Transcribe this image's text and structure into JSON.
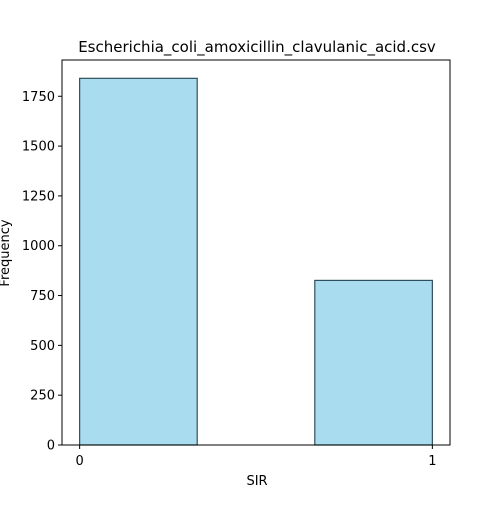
{
  "chart_data": {
    "type": "bar",
    "title": "Escherichia_coli_amoxicillin_clavulanic_acid.csv",
    "xlabel": "SIR",
    "ylabel": "Frequency",
    "bins": [
      {
        "start": 0,
        "end": 0.3333,
        "value": 1840
      },
      {
        "start": 0.3333,
        "end": 0.6667,
        "value": 0
      },
      {
        "start": 0.6667,
        "end": 1,
        "value": 826
      }
    ],
    "xlim": [
      -0.05,
      1.05
    ],
    "ylim": [
      0,
      1932
    ],
    "xticks": [
      0,
      1
    ],
    "xtick_labels": [
      "0",
      "1"
    ],
    "yticks": [
      0,
      250,
      500,
      750,
      1000,
      1250,
      1500,
      1750
    ],
    "ytick_labels": [
      "0",
      "250",
      "500",
      "750",
      "1000",
      "1250",
      "1500",
      "1750"
    ],
    "bar_color": "#a9dcef",
    "edge_color": "#2f4f5a",
    "grid": false,
    "legend": "none"
  }
}
